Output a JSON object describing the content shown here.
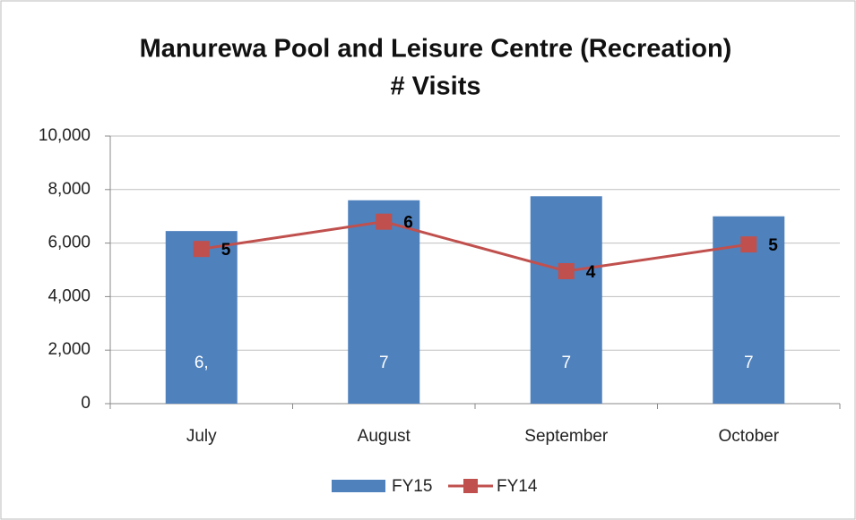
{
  "chart_data": {
    "type": "bar",
    "title": [
      "Manurewa Pool and Leisure Centre (Recreation)",
      "# Visits"
    ],
    "categories": [
      "July",
      "August",
      "September",
      "October"
    ],
    "series": [
      {
        "name": "FY15",
        "type": "bar",
        "color": "#4f81bd",
        "values": [
          6450,
          7600,
          7750,
          7000
        ],
        "value_labels": [
          "6,",
          "7",
          "7",
          "7"
        ]
      },
      {
        "name": "FY14",
        "type": "line",
        "color": "#c0504d",
        "values": [
          5780,
          6800,
          4950,
          5950
        ],
        "value_labels": [
          "5",
          "6",
          "4",
          "5"
        ]
      }
    ],
    "ylim": [
      0,
      10000
    ],
    "yticks": [
      0,
      {
        "value": 2000,
        "label": "2,000"
      },
      {
        "value": 4000,
        "label": "4,000"
      },
      {
        "value": 6000,
        "label": "6,000"
      },
      {
        "value": 8000,
        "label": "8,000"
      },
      {
        "value": 10000,
        "label": "10,000"
      }
    ],
    "grid": true,
    "legend": "bottom"
  }
}
